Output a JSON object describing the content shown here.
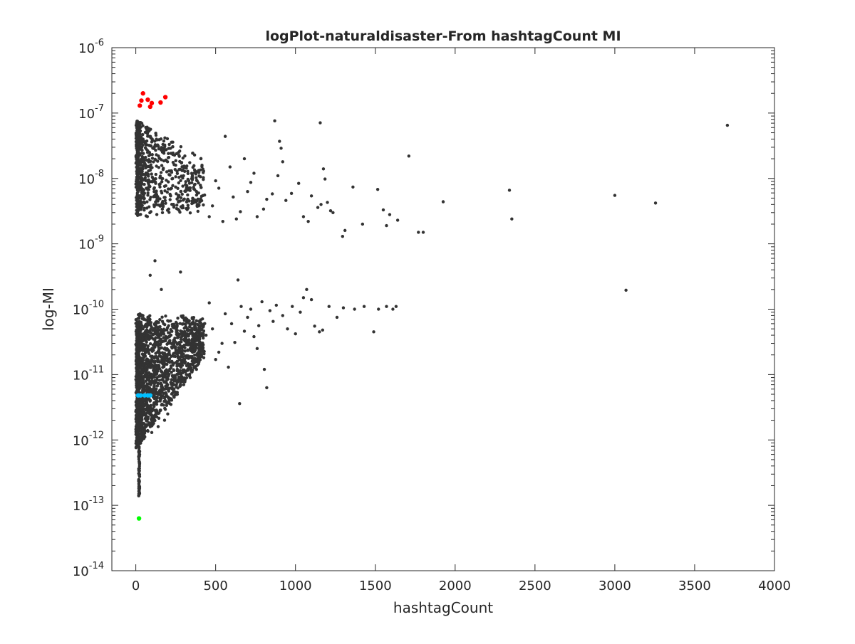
{
  "chart_data": {
    "type": "scatter",
    "title": "logPlot-naturaldisaster-From hashtagCount MI",
    "xlabel": "hashtagCount",
    "ylabel": "log-MI",
    "xlim": [
      -150,
      4000
    ],
    "ylim": [
      1e-14,
      1e-06
    ],
    "yscale": "log",
    "grid": false,
    "box": true,
    "xticks": [
      {
        "value": 0,
        "label": "0"
      },
      {
        "value": 500,
        "label": "500"
      },
      {
        "value": 1000,
        "label": "1000"
      },
      {
        "value": 1500,
        "label": "1500"
      },
      {
        "value": 2000,
        "label": "2000"
      },
      {
        "value": 2500,
        "label": "2500"
      },
      {
        "value": 3000,
        "label": "3000"
      },
      {
        "value": 3500,
        "label": "3500"
      },
      {
        "value": 4000,
        "label": "4000"
      }
    ],
    "yticks": [
      {
        "value": 1e-06,
        "base": "10",
        "exp": "-6"
      },
      {
        "value": 1e-07,
        "base": "10",
        "exp": "-7"
      },
      {
        "value": 1e-08,
        "base": "10",
        "exp": "-8"
      },
      {
        "value": 1e-09,
        "base": "10",
        "exp": "-9"
      },
      {
        "value": 1e-10,
        "base": "10",
        "exp": "-10"
      },
      {
        "value": 1e-11,
        "base": "10",
        "exp": "-11"
      },
      {
        "value": 1e-12,
        "base": "10",
        "exp": "-12"
      },
      {
        "value": 1e-13,
        "base": "10",
        "exp": "-13"
      },
      {
        "value": 1e-14,
        "base": "10",
        "exp": "-14"
      }
    ],
    "series": [
      {
        "color": "#333333",
        "marker_size": 2.2,
        "points": [
          [
            3705,
            6.5e-08
          ],
          [
            3255,
            4.2e-09
          ],
          [
            3000,
            5.5e-09
          ],
          [
            2340,
            6.6e-09
          ],
          [
            2355,
            2.4e-09
          ],
          [
            1925,
            4.4e-09
          ],
          [
            1710,
            2.2e-08
          ],
          [
            1800,
            1.5e-09
          ],
          [
            1770,
            1.5e-09
          ],
          [
            1640,
            2.3e-09
          ],
          [
            1590,
            2.8e-09
          ],
          [
            1570,
            1.9e-09
          ],
          [
            1550,
            3.3e-09
          ],
          [
            1515,
            6.8e-09
          ],
          [
            1420,
            2e-09
          ],
          [
            1360,
            7.4e-09
          ],
          [
            1310,
            1.6e-09
          ],
          [
            1295,
            1.3e-09
          ],
          [
            1235,
            3e-09
          ],
          [
            1200,
            4.3e-09
          ],
          [
            1155,
            7.1e-08
          ],
          [
            1175,
            1.4e-08
          ],
          [
            1185,
            9.8e-09
          ],
          [
            1220,
            3.2e-09
          ],
          [
            1160,
            4e-09
          ],
          [
            1100,
            5.4e-09
          ],
          [
            1140,
            3.6e-09
          ],
          [
            1080,
            2.2e-09
          ],
          [
            1050,
            2.6e-09
          ],
          [
            1020,
            8.4e-09
          ],
          [
            975,
            5.9e-09
          ],
          [
            940,
            4.6e-09
          ],
          [
            900,
            3.7e-08
          ],
          [
            910,
            2.9e-08
          ],
          [
            870,
            7.6e-08
          ],
          [
            920,
            1.8e-08
          ],
          [
            890,
            1.1e-08
          ],
          [
            855,
            5.8e-09
          ],
          [
            820,
            4.8e-09
          ],
          [
            800,
            3.4e-09
          ],
          [
            760,
            2.6e-09
          ],
          [
            740,
            1.2e-08
          ],
          [
            720,
            8.7e-09
          ],
          [
            700,
            6.3e-09
          ],
          [
            680,
            2e-08
          ],
          [
            655,
            3.1e-09
          ],
          [
            630,
            2.4e-09
          ],
          [
            610,
            5.2e-09
          ],
          [
            590,
            1.5e-08
          ],
          [
            560,
            4.4e-08
          ],
          [
            545,
            2.2e-09
          ],
          [
            520,
            7.1e-09
          ],
          [
            500,
            9.2e-09
          ],
          [
            480,
            3.8e-09
          ],
          [
            460,
            2.6e-09
          ],
          [
            3070,
            1.95e-10
          ],
          [
            1630,
            1.1e-10
          ],
          [
            1610,
            1e-10
          ],
          [
            1570,
            1.1e-10
          ],
          [
            1520,
            1e-10
          ],
          [
            1490,
            4.5e-11
          ],
          [
            1430,
            1.1e-10
          ],
          [
            1370,
            1e-10
          ],
          [
            1300,
            1.05e-10
          ],
          [
            1260,
            7.5e-11
          ],
          [
            1210,
            1.1e-10
          ],
          [
            1170,
            4.8e-11
          ],
          [
            1150,
            4.5e-11
          ],
          [
            1120,
            5.5e-11
          ],
          [
            1100,
            1.4e-10
          ],
          [
            1070,
            2e-10
          ],
          [
            1050,
            1.5e-10
          ],
          [
            1030,
            9e-11
          ],
          [
            1000,
            4.2e-11
          ],
          [
            980,
            1.1e-10
          ],
          [
            950,
            5e-11
          ],
          [
            920,
            8e-11
          ],
          [
            880,
            1.15e-10
          ],
          [
            860,
            6.5e-11
          ],
          [
            840,
            9.5e-11
          ],
          [
            820,
            6.3e-12
          ],
          [
            805,
            1.2e-11
          ],
          [
            790,
            1.3e-10
          ],
          [
            770,
            5.6e-11
          ],
          [
            760,
            2.5e-11
          ],
          [
            740,
            3.8e-11
          ],
          [
            720,
            1e-10
          ],
          [
            700,
            7.5e-11
          ],
          [
            680,
            4.6e-11
          ],
          [
            660,
            1.1e-10
          ],
          [
            650,
            3.6e-12
          ],
          [
            640,
            2.8e-10
          ],
          [
            620,
            3.1e-11
          ],
          [
            600,
            6e-11
          ],
          [
            580,
            1.3e-11
          ],
          [
            560,
            8.5e-11
          ],
          [
            540,
            3e-11
          ],
          [
            520,
            2.2e-11
          ],
          [
            500,
            1.7e-11
          ],
          [
            480,
            5e-11
          ],
          [
            460,
            1.25e-10
          ],
          [
            440,
            4e-11
          ],
          [
            420,
            2.5e-11
          ],
          [
            400,
            3.5e-11
          ],
          [
            380,
            1.2e-11
          ],
          [
            360,
            7e-11
          ],
          [
            340,
            9e-12
          ],
          [
            320,
            1.8e-11
          ],
          [
            300,
            7e-12
          ],
          [
            280,
            3.7e-10
          ],
          [
            260,
            5e-12
          ],
          [
            240,
            4.5e-12
          ],
          [
            220,
            3.5e-12
          ],
          [
            200,
            2.5e-12
          ],
          [
            180,
            2e-12
          ],
          [
            160,
            2e-10
          ],
          [
            140,
            1.6e-12
          ],
          [
            120,
            5.5e-10
          ],
          [
            100,
            1.3e-12
          ],
          [
            90,
            3.3e-10
          ]
        ]
      },
      {
        "color": "#ff0000",
        "marker_size": 3.2,
        "points": [
          [
            45,
            2e-07
          ],
          [
            185,
            1.75e-07
          ],
          [
            35,
            1.55e-07
          ],
          [
            75,
            1.6e-07
          ],
          [
            100,
            1.42e-07
          ],
          [
            155,
            1.45e-07
          ],
          [
            25,
            1.3e-07
          ],
          [
            90,
            1.25e-07
          ]
        ]
      },
      {
        "color": "#00bfff",
        "marker_size": 3.2,
        "points": [
          [
            15,
            4.8e-12
          ],
          [
            30,
            4.8e-12
          ],
          [
            55,
            4.8e-12
          ],
          [
            75,
            4.8e-12
          ],
          [
            90,
            4.8e-12
          ]
        ]
      },
      {
        "color": "#00ff00",
        "marker_size": 3.2,
        "points": [
          [
            20,
            6.3e-14
          ]
        ]
      }
    ]
  }
}
